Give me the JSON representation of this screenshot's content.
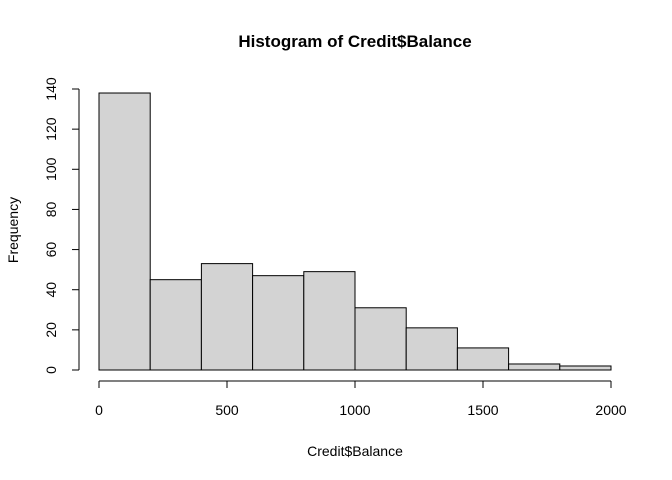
{
  "chart_data": {
    "type": "bar",
    "title": "Histogram of Credit$Balance",
    "xlabel": "Credit$Balance",
    "ylabel": "Frequency",
    "bin_edges": [
      0,
      200,
      400,
      600,
      800,
      1000,
      1200,
      1400,
      1600,
      1800,
      2000
    ],
    "values": [
      138,
      45,
      53,
      47,
      49,
      31,
      21,
      11,
      3,
      2
    ],
    "xlim": [
      0,
      2000
    ],
    "ylim": [
      0,
      140
    ],
    "x_ticks": [
      0,
      500,
      1000,
      1500,
      2000
    ],
    "x_tick_labels": [
      "0",
      "500",
      "1000",
      "1500",
      "2000"
    ],
    "y_ticks": [
      0,
      20,
      40,
      60,
      80,
      100,
      120,
      140
    ],
    "y_tick_labels": [
      "0",
      "20",
      "40",
      "60",
      "80",
      "100",
      "120",
      "140"
    ],
    "bar_color": "#d3d3d3",
    "grid": false,
    "legend": "none"
  }
}
